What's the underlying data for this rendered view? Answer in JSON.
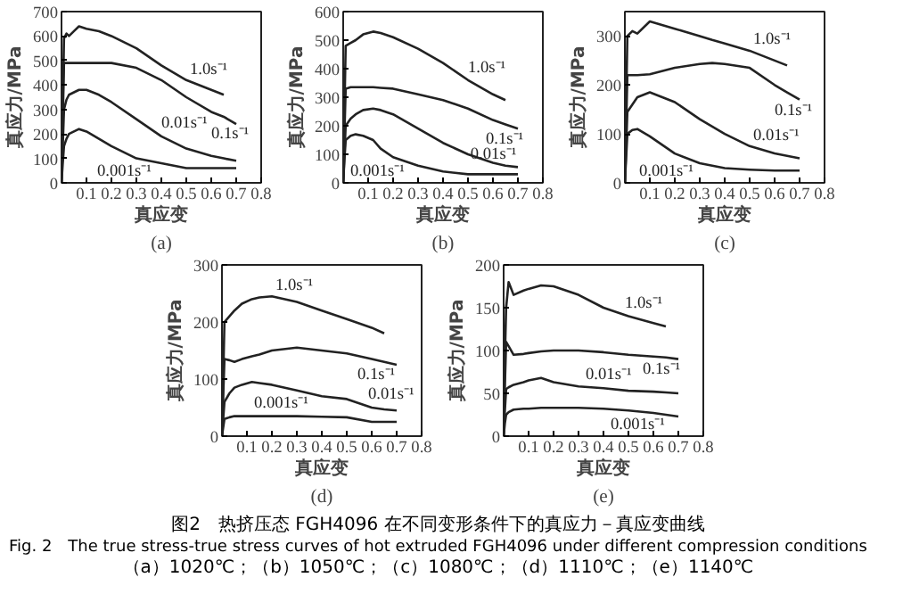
{
  "chart_data": [
    {
      "type": "line",
      "title": "(a)",
      "xlabel": "真应变",
      "ylabel": "真应力/MPa",
      "xlim": [
        0,
        0.8
      ],
      "ylim": [
        0,
        700
      ],
      "xticks": [
        0.1,
        0.2,
        0.3,
        0.4,
        0.5,
        0.6,
        0.7,
        0.8
      ],
      "yticks": [
        0,
        100,
        200,
        300,
        400,
        500,
        600,
        700
      ],
      "grid": false,
      "x": [
        0,
        0.005,
        0.01,
        0.02,
        0.03,
        0.05,
        0.07,
        0.1,
        0.15,
        0.2,
        0.3,
        0.4,
        0.5,
        0.6,
        0.65,
        0.7
      ],
      "series": [
        {
          "name": "1.0s⁻¹",
          "color": "#222222",
          "values": [
            0,
            300,
            590,
            610,
            600,
            620,
            640,
            630,
            620,
            600,
            550,
            480,
            420,
            380,
            360,
            null
          ]
        },
        {
          "name": "0.1s⁻¹",
          "color": "#222222",
          "values": [
            0,
            250,
            490,
            490,
            490,
            490,
            490,
            490,
            490,
            490,
            470,
            420,
            350,
            290,
            270,
            240
          ]
        },
        {
          "name": "0.01s⁻¹",
          "color": "#222222",
          "values": [
            0,
            150,
            300,
            340,
            360,
            370,
            380,
            380,
            360,
            330,
            260,
            190,
            140,
            110,
            100,
            90
          ]
        },
        {
          "name": "0.001s⁻¹",
          "color": "#222222",
          "values": [
            0,
            80,
            150,
            180,
            200,
            210,
            220,
            210,
            180,
            150,
            100,
            80,
            60,
            60,
            60,
            60
          ]
        }
      ]
    },
    {
      "type": "line",
      "title": "(b)",
      "xlabel": "真应变",
      "ylabel": "真应力/MPa",
      "xlim": [
        0,
        0.8
      ],
      "ylim": [
        0,
        600
      ],
      "xticks": [
        0.1,
        0.2,
        0.3,
        0.4,
        0.5,
        0.6,
        0.7,
        0.8
      ],
      "yticks": [
        0,
        100,
        200,
        300,
        400,
        500,
        600
      ],
      "grid": false,
      "x": [
        0,
        0.005,
        0.01,
        0.03,
        0.05,
        0.08,
        0.12,
        0.15,
        0.2,
        0.3,
        0.4,
        0.5,
        0.6,
        0.65,
        0.7
      ],
      "series": [
        {
          "name": "1.0s⁻¹",
          "color": "#222222",
          "values": [
            0,
            250,
            480,
            490,
            500,
            520,
            530,
            525,
            510,
            470,
            420,
            360,
            310,
            290,
            null
          ]
        },
        {
          "name": "0.1s⁻¹",
          "color": "#222222",
          "values": [
            0,
            170,
            330,
            335,
            335,
            335,
            335,
            333,
            330,
            310,
            290,
            260,
            220,
            205,
            190
          ]
        },
        {
          "name": "0.01s⁻¹",
          "color": "#222222",
          "values": [
            0,
            100,
            200,
            225,
            240,
            255,
            260,
            255,
            240,
            190,
            140,
            100,
            70,
            60,
            55
          ]
        },
        {
          "name": "0.001s⁻¹",
          "color": "#222222",
          "values": [
            0,
            80,
            150,
            165,
            170,
            165,
            150,
            120,
            90,
            60,
            40,
            30,
            30,
            30,
            30
          ]
        }
      ]
    },
    {
      "type": "line",
      "title": "(c)",
      "xlabel": "真应变",
      "ylabel": "真应力/MPa",
      "xlim": [
        0,
        0.8
      ],
      "ylim": [
        0,
        350
      ],
      "xticks": [
        0.1,
        0.2,
        0.3,
        0.4,
        0.5,
        0.6,
        0.7,
        0.8
      ],
      "yticks": [
        0,
        100,
        200,
        300
      ],
      "grid": false,
      "x": [
        0,
        0.005,
        0.01,
        0.03,
        0.05,
        0.1,
        0.2,
        0.3,
        0.35,
        0.4,
        0.5,
        0.6,
        0.65,
        0.7
      ],
      "series": [
        {
          "name": "1.0s⁻¹",
          "color": "#222222",
          "values": [
            0,
            150,
            300,
            310,
            305,
            330,
            315,
            300,
            292,
            285,
            270,
            250,
            240,
            null
          ]
        },
        {
          "name": "0.1s⁻¹",
          "color": "#222222",
          "values": [
            0,
            110,
            220,
            220,
            220,
            222,
            235,
            243,
            245,
            243,
            235,
            200,
            185,
            170
          ]
        },
        {
          "name": "0.01s⁻¹",
          "color": "#222222",
          "values": [
            0,
            70,
            145,
            160,
            175,
            185,
            165,
            130,
            115,
            100,
            75,
            60,
            55,
            50
          ]
        },
        {
          "name": "0.001s⁻¹",
          "color": "#222222",
          "values": [
            0,
            50,
            100,
            108,
            110,
            95,
            60,
            40,
            35,
            30,
            27,
            25,
            25,
            25
          ]
        }
      ]
    },
    {
      "type": "line",
      "title": "(d)",
      "xlabel": "真应变",
      "ylabel": "真应力/MPa",
      "xlim": [
        0,
        0.8
      ],
      "ylim": [
        0,
        300
      ],
      "xticks": [
        0.1,
        0.2,
        0.3,
        0.4,
        0.5,
        0.6,
        0.7,
        0.8
      ],
      "yticks": [
        0,
        100,
        200,
        300
      ],
      "grid": false,
      "x": [
        0,
        0.005,
        0.01,
        0.03,
        0.05,
        0.08,
        0.12,
        0.15,
        0.2,
        0.3,
        0.4,
        0.5,
        0.6,
        0.65,
        0.7
      ],
      "series": [
        {
          "name": "1.0s⁻¹",
          "color": "#222222",
          "values": [
            0,
            100,
            200,
            210,
            220,
            232,
            240,
            243,
            245,
            235,
            220,
            205,
            190,
            180,
            null
          ]
        },
        {
          "name": "0.1s⁻¹",
          "color": "#222222",
          "values": [
            0,
            70,
            135,
            133,
            130,
            135,
            140,
            143,
            150,
            155,
            150,
            145,
            135,
            130,
            125
          ]
        },
        {
          "name": "0.01s⁻¹",
          "color": "#222222",
          "values": [
            0,
            30,
            60,
            75,
            85,
            90,
            95,
            93,
            90,
            80,
            70,
            65,
            50,
            47,
            45
          ]
        },
        {
          "name": "0.001s⁻¹",
          "color": "#222222",
          "values": [
            0,
            15,
            30,
            33,
            35,
            35,
            35,
            35,
            35,
            35,
            34,
            33,
            25,
            25,
            25
          ]
        }
      ]
    },
    {
      "type": "line",
      "title": "(e)",
      "xlabel": "真应变",
      "ylabel": "真应力/MPa",
      "xlim": [
        0,
        0.8
      ],
      "ylim": [
        0,
        200
      ],
      "xticks": [
        0.1,
        0.2,
        0.3,
        0.4,
        0.5,
        0.6,
        0.7,
        0.8
      ],
      "yticks": [
        0,
        50,
        100,
        150,
        200
      ],
      "grid": false,
      "x": [
        0,
        0.005,
        0.01,
        0.02,
        0.04,
        0.08,
        0.1,
        0.15,
        0.2,
        0.3,
        0.4,
        0.5,
        0.6,
        0.65,
        0.7
      ],
      "series": [
        {
          "name": "1.0s⁻¹",
          "color": "#222222",
          "values": [
            0,
            90,
            150,
            180,
            165,
            170,
            172,
            176,
            175,
            165,
            150,
            140,
            132,
            128,
            null
          ]
        },
        {
          "name": "0.1s⁻¹",
          "color": "#222222",
          "values": [
            0,
            60,
            110,
            105,
            95,
            96,
            97,
            99,
            100,
            100,
            98,
            95,
            93,
            92,
            90
          ]
        },
        {
          "name": "0.01s⁻¹",
          "color": "#222222",
          "values": [
            0,
            30,
            55,
            57,
            60,
            63,
            65,
            68,
            63,
            58,
            56,
            53,
            52,
            51,
            50
          ]
        },
        {
          "name": "0.001s⁻¹",
          "color": "#222222",
          "values": [
            0,
            15,
            25,
            28,
            31,
            32,
            32,
            33,
            33,
            33,
            32,
            30,
            27,
            25,
            23
          ]
        }
      ],
      "annotations": [
        "图2　热挤压态 FGH4096 在不同变形条件下的真应力－真应变曲线",
        "Fig. 2　The true stress-true stress curves of hot extruded FGH4096 under different compression conditions",
        "（a）1020℃；（b）1050℃；（c）1080℃；（d）1110℃；（e）1140℃"
      ]
    }
  ]
}
